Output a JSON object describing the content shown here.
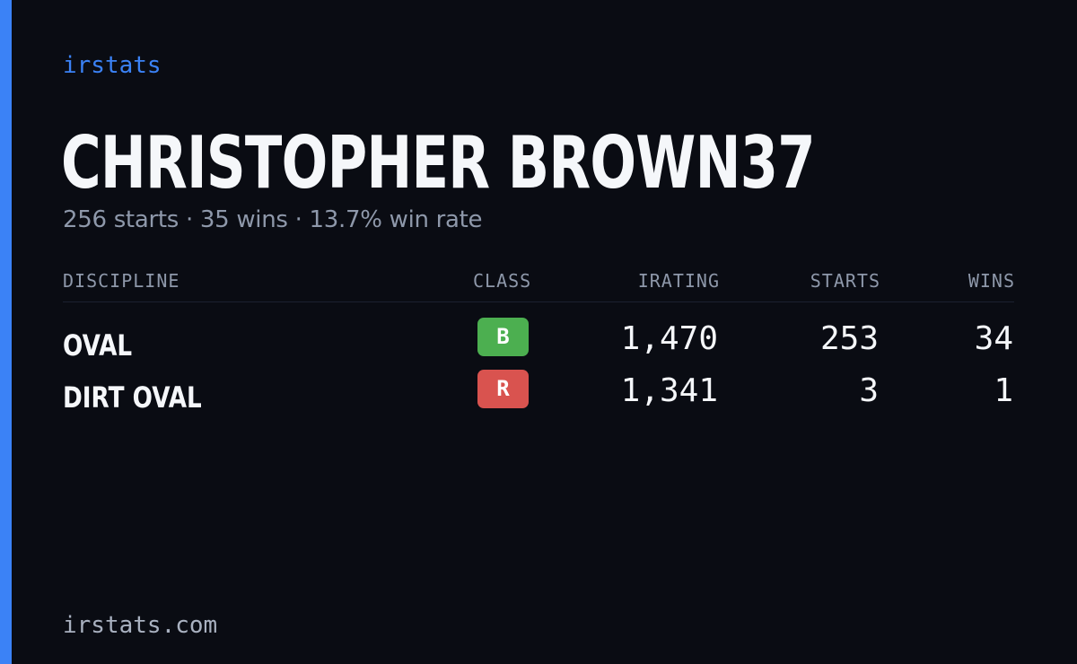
{
  "brand": "irstats",
  "player": {
    "name": "CHRISTOPHER BROWN37",
    "summary": "256 starts · 35 wins · 13.7% win rate"
  },
  "table": {
    "headers": {
      "discipline": "DISCIPLINE",
      "class": "CLASS",
      "irating": "IRATING",
      "starts": "STARTS",
      "wins": "WINS"
    },
    "rows": [
      {
        "discipline": "OVAL",
        "class": "B",
        "class_color": "#4caf50",
        "irating": "1,470",
        "starts": "253",
        "wins": "34"
      },
      {
        "discipline": "DIRT OVAL",
        "class": "R",
        "class_color": "#d9534f",
        "irating": "1,341",
        "starts": "3",
        "wins": "1"
      }
    ]
  },
  "footer": "irstats.com",
  "colors": {
    "background": "#0a0c13",
    "accent": "#3b82f6",
    "muted_text": "#8e98aa"
  }
}
